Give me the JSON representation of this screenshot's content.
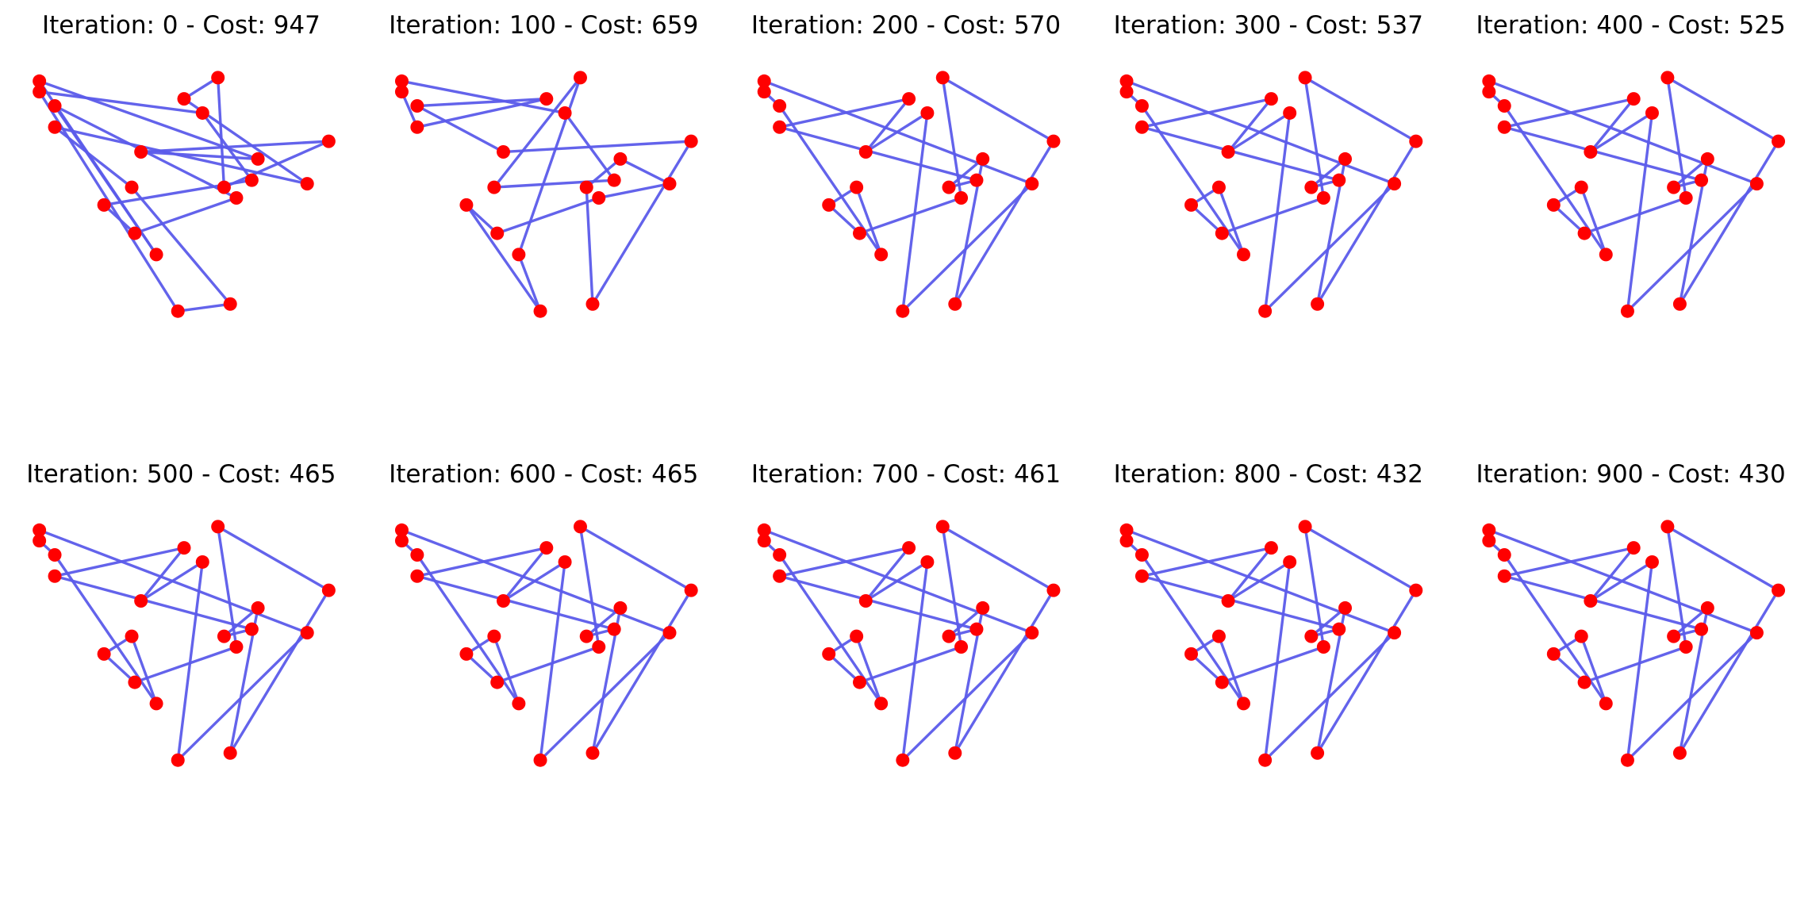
{
  "figure": {
    "colors": {
      "route": "#5b5bea",
      "city": "#ff0000"
    }
  },
  "chart_data": [
    {
      "type": "scatter",
      "title": "Iteration: 0 - Cost: 947",
      "iteration": 0,
      "cost": 947,
      "grid": false,
      "axes_visible": false,
      "xlim": [
        0,
        100
      ],
      "ylim": [
        0,
        100
      ],
      "points": [
        [
          3,
          95
        ],
        [
          36,
          75
        ],
        [
          97,
          78
        ],
        [
          8,
          82
        ],
        [
          33,
          65
        ],
        [
          24,
          60
        ],
        [
          3,
          92
        ],
        [
          72,
          67
        ],
        [
          8,
          88
        ],
        [
          56,
          86
        ],
        [
          74,
          73
        ],
        [
          63,
          65
        ],
        [
          50,
          90
        ],
        [
          41,
          46
        ],
        [
          34,
          52
        ],
        [
          65,
          32
        ],
        [
          61,
          96
        ],
        [
          48,
          30
        ],
        [
          67,
          62
        ],
        [
          90,
          66
        ]
      ],
      "route": [
        0,
        10,
        1,
        2,
        11,
        16,
        12,
        19,
        3,
        4,
        15,
        17,
        6,
        9,
        7,
        5,
        14,
        18,
        8,
        13,
        0
      ]
    },
    {
      "type": "scatter",
      "title": "Iteration: 100 - Cost: 659",
      "iteration": 100,
      "cost": 659,
      "grid": false,
      "axes_visible": false,
      "xlim": [
        0,
        100
      ],
      "ylim": [
        0,
        100
      ],
      "points": [
        [
          3,
          95
        ],
        [
          36,
          75
        ],
        [
          97,
          78
        ],
        [
          8,
          82
        ],
        [
          33,
          65
        ],
        [
          24,
          60
        ],
        [
          3,
          92
        ],
        [
          72,
          67
        ],
        [
          8,
          88
        ],
        [
          56,
          86
        ],
        [
          74,
          73
        ],
        [
          63,
          65
        ],
        [
          50,
          90
        ],
        [
          41,
          46
        ],
        [
          34,
          52
        ],
        [
          65,
          32
        ],
        [
          61,
          96
        ],
        [
          48,
          30
        ],
        [
          67,
          62
        ],
        [
          90,
          66
        ]
      ],
      "route": [
        0,
        6,
        3,
        12,
        8,
        1,
        2,
        15,
        11,
        10,
        19,
        18,
        14,
        5,
        17,
        13,
        16,
        4,
        7,
        9,
        0
      ]
    },
    {
      "type": "scatter",
      "title": "Iteration: 200 - Cost: 570",
      "iteration": 200,
      "cost": 570,
      "grid": false,
      "axes_visible": false,
      "xlim": [
        0,
        100
      ],
      "ylim": [
        0,
        100
      ],
      "points": [
        [
          3,
          95
        ],
        [
          36,
          75
        ],
        [
          97,
          78
        ],
        [
          8,
          82
        ],
        [
          33,
          65
        ],
        [
          24,
          60
        ],
        [
          3,
          92
        ],
        [
          72,
          67
        ],
        [
          8,
          88
        ],
        [
          56,
          86
        ],
        [
          74,
          73
        ],
        [
          63,
          65
        ],
        [
          50,
          90
        ],
        [
          41,
          46
        ],
        [
          34,
          52
        ],
        [
          65,
          32
        ],
        [
          61,
          96
        ],
        [
          48,
          30
        ],
        [
          67,
          62
        ],
        [
          90,
          66
        ]
      ],
      "route": [
        0,
        6,
        8,
        13,
        4,
        5,
        14,
        18,
        16,
        2,
        15,
        10,
        11,
        7,
        3,
        12,
        1,
        9,
        17,
        19,
        0
      ]
    },
    {
      "type": "scatter",
      "title": "Iteration: 300 - Cost: 537",
      "iteration": 300,
      "cost": 537,
      "grid": false,
      "axes_visible": false,
      "xlim": [
        0,
        100
      ],
      "ylim": [
        0,
        100
      ],
      "points": [
        [
          3,
          95
        ],
        [
          36,
          75
        ],
        [
          97,
          78
        ],
        [
          8,
          82
        ],
        [
          33,
          65
        ],
        [
          24,
          60
        ],
        [
          3,
          92
        ],
        [
          72,
          67
        ],
        [
          8,
          88
        ],
        [
          56,
          86
        ],
        [
          74,
          73
        ],
        [
          63,
          65
        ],
        [
          50,
          90
        ],
        [
          41,
          46
        ],
        [
          34,
          52
        ],
        [
          65,
          32
        ],
        [
          61,
          96
        ],
        [
          48,
          30
        ],
        [
          67,
          62
        ],
        [
          90,
          66
        ]
      ],
      "route": [
        0,
        6,
        8,
        13,
        4,
        5,
        14,
        18,
        16,
        2,
        15,
        10,
        11,
        7,
        3,
        12,
        1,
        9,
        17,
        19,
        0
      ]
    },
    {
      "type": "scatter",
      "title": "Iteration: 400 - Cost: 525",
      "iteration": 400,
      "cost": 525,
      "grid": false,
      "axes_visible": false,
      "xlim": [
        0,
        100
      ],
      "ylim": [
        0,
        100
      ],
      "points": [
        [
          3,
          95
        ],
        [
          36,
          75
        ],
        [
          97,
          78
        ],
        [
          8,
          82
        ],
        [
          33,
          65
        ],
        [
          24,
          60
        ],
        [
          3,
          92
        ],
        [
          72,
          67
        ],
        [
          8,
          88
        ],
        [
          56,
          86
        ],
        [
          74,
          73
        ],
        [
          63,
          65
        ],
        [
          50,
          90
        ],
        [
          41,
          46
        ],
        [
          34,
          52
        ],
        [
          65,
          32
        ],
        [
          61,
          96
        ],
        [
          48,
          30
        ],
        [
          67,
          62
        ],
        [
          90,
          66
        ]
      ],
      "route": [
        0,
        6,
        8,
        13,
        4,
        5,
        14,
        18,
        16,
        2,
        15,
        10,
        11,
        7,
        3,
        12,
        1,
        9,
        17,
        19,
        0
      ]
    },
    {
      "type": "scatter",
      "title": "Iteration: 500 - Cost: 465",
      "iteration": 500,
      "cost": 465,
      "grid": false,
      "axes_visible": false,
      "xlim": [
        0,
        100
      ],
      "ylim": [
        0,
        100
      ],
      "points": [
        [
          3,
          95
        ],
        [
          36,
          75
        ],
        [
          97,
          78
        ],
        [
          8,
          82
        ],
        [
          33,
          65
        ],
        [
          24,
          60
        ],
        [
          3,
          92
        ],
        [
          72,
          67
        ],
        [
          8,
          88
        ],
        [
          56,
          86
        ],
        [
          74,
          73
        ],
        [
          63,
          65
        ],
        [
          50,
          90
        ],
        [
          41,
          46
        ],
        [
          34,
          52
        ],
        [
          65,
          32
        ],
        [
          61,
          96
        ],
        [
          48,
          30
        ],
        [
          67,
          62
        ],
        [
          90,
          66
        ]
      ],
      "route": [
        0,
        6,
        8,
        13,
        4,
        5,
        14,
        18,
        16,
        2,
        15,
        10,
        11,
        7,
        3,
        12,
        1,
        9,
        17,
        19,
        0
      ]
    },
    {
      "type": "scatter",
      "title": "Iteration: 600 - Cost: 465",
      "iteration": 600,
      "cost": 465,
      "grid": false,
      "axes_visible": false,
      "xlim": [
        0,
        100
      ],
      "ylim": [
        0,
        100
      ],
      "points": [
        [
          3,
          95
        ],
        [
          36,
          75
        ],
        [
          97,
          78
        ],
        [
          8,
          82
        ],
        [
          33,
          65
        ],
        [
          24,
          60
        ],
        [
          3,
          92
        ],
        [
          72,
          67
        ],
        [
          8,
          88
        ],
        [
          56,
          86
        ],
        [
          74,
          73
        ],
        [
          63,
          65
        ],
        [
          50,
          90
        ],
        [
          41,
          46
        ],
        [
          34,
          52
        ],
        [
          65,
          32
        ],
        [
          61,
          96
        ],
        [
          48,
          30
        ],
        [
          67,
          62
        ],
        [
          90,
          66
        ]
      ],
      "route": [
        0,
        6,
        8,
        13,
        4,
        5,
        14,
        18,
        16,
        2,
        15,
        10,
        11,
        7,
        3,
        12,
        1,
        9,
        17,
        19,
        0
      ]
    },
    {
      "type": "scatter",
      "title": "Iteration: 700 - Cost: 461",
      "iteration": 700,
      "cost": 461,
      "grid": false,
      "axes_visible": false,
      "xlim": [
        0,
        100
      ],
      "ylim": [
        0,
        100
      ],
      "points": [
        [
          3,
          95
        ],
        [
          36,
          75
        ],
        [
          97,
          78
        ],
        [
          8,
          82
        ],
        [
          33,
          65
        ],
        [
          24,
          60
        ],
        [
          3,
          92
        ],
        [
          72,
          67
        ],
        [
          8,
          88
        ],
        [
          56,
          86
        ],
        [
          74,
          73
        ],
        [
          63,
          65
        ],
        [
          50,
          90
        ],
        [
          41,
          46
        ],
        [
          34,
          52
        ],
        [
          65,
          32
        ],
        [
          61,
          96
        ],
        [
          48,
          30
        ],
        [
          67,
          62
        ],
        [
          90,
          66
        ]
      ],
      "route": [
        0,
        6,
        8,
        13,
        4,
        5,
        14,
        18,
        16,
        2,
        15,
        10,
        11,
        7,
        3,
        12,
        1,
        9,
        17,
        19,
        0
      ]
    },
    {
      "type": "scatter",
      "title": "Iteration: 800 - Cost: 432",
      "iteration": 800,
      "cost": 432,
      "grid": false,
      "axes_visible": false,
      "xlim": [
        0,
        100
      ],
      "ylim": [
        0,
        100
      ],
      "points": [
        [
          3,
          95
        ],
        [
          36,
          75
        ],
        [
          97,
          78
        ],
        [
          8,
          82
        ],
        [
          33,
          65
        ],
        [
          24,
          60
        ],
        [
          3,
          92
        ],
        [
          72,
          67
        ],
        [
          8,
          88
        ],
        [
          56,
          86
        ],
        [
          74,
          73
        ],
        [
          63,
          65
        ],
        [
          50,
          90
        ],
        [
          41,
          46
        ],
        [
          34,
          52
        ],
        [
          65,
          32
        ],
        [
          61,
          96
        ],
        [
          48,
          30
        ],
        [
          67,
          62
        ],
        [
          90,
          66
        ]
      ],
      "route": [
        0,
        6,
        8,
        13,
        4,
        5,
        14,
        18,
        16,
        2,
        15,
        10,
        11,
        7,
        3,
        12,
        1,
        9,
        17,
        19,
        0
      ]
    },
    {
      "type": "scatter",
      "title": "Iteration: 900 - Cost: 430",
      "iteration": 900,
      "cost": 430,
      "grid": false,
      "axes_visible": false,
      "xlim": [
        0,
        100
      ],
      "ylim": [
        0,
        100
      ],
      "points": [
        [
          3,
          95
        ],
        [
          36,
          75
        ],
        [
          97,
          78
        ],
        [
          8,
          82
        ],
        [
          33,
          65
        ],
        [
          24,
          60
        ],
        [
          3,
          92
        ],
        [
          72,
          67
        ],
        [
          8,
          88
        ],
        [
          56,
          86
        ],
        [
          74,
          73
        ],
        [
          63,
          65
        ],
        [
          50,
          90
        ],
        [
          41,
          46
        ],
        [
          34,
          52
        ],
        [
          65,
          32
        ],
        [
          61,
          96
        ],
        [
          48,
          30
        ],
        [
          67,
          62
        ],
        [
          90,
          66
        ]
      ],
      "route": [
        0,
        6,
        8,
        13,
        4,
        5,
        14,
        18,
        16,
        2,
        15,
        10,
        11,
        7,
        3,
        12,
        1,
        9,
        17,
        19,
        0
      ]
    }
  ]
}
